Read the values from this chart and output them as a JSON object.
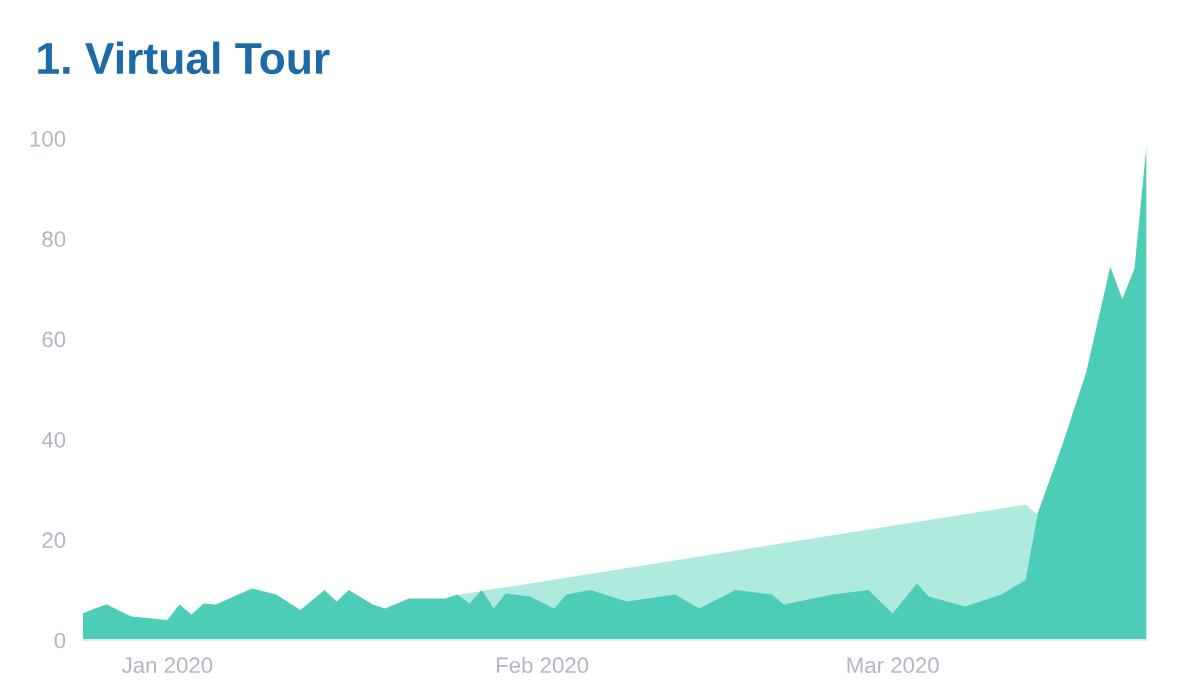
{
  "chart_data": {
    "type": "area",
    "title": "1. Virtual Tour",
    "series": [
      {
        "color": "#aeeade",
        "x": [
          "2020-01-25",
          "2020-03-12",
          "2020-03-13"
        ],
        "values": [
          9,
          27,
          25
        ]
      },
      {
        "color": "#4ecdb6",
        "x": [
          "2019-12-25",
          "2019-12-26",
          "2019-12-27",
          "2019-12-29",
          "2020-01-01",
          "2020-01-02",
          "2020-01-03",
          "2020-01-04",
          "2020-01-05",
          "2020-01-08",
          "2020-01-10",
          "2020-01-12",
          "2020-01-14",
          "2020-01-15",
          "2020-01-16",
          "2020-01-18",
          "2020-01-19",
          "2020-01-21",
          "2020-01-24",
          "2020-01-25",
          "2020-01-26",
          "2020-01-27",
          "2020-01-28",
          "2020-01-29",
          "2020-01-31",
          "2020-02-02",
          "2020-02-03",
          "2020-02-05",
          "2020-02-08",
          "2020-02-12",
          "2020-02-14",
          "2020-02-17",
          "2020-02-20",
          "2020-02-21",
          "2020-02-25",
          "2020-02-28",
          "2020-03-01",
          "2020-03-03",
          "2020-03-04",
          "2020-03-07",
          "2020-03-10",
          "2020-03-12",
          "2020-03-13",
          "2020-03-15",
          "2020-03-17",
          "2020-03-19",
          "2020-03-20",
          "2020-03-21",
          "2020-03-22"
        ],
        "values": [
          5.3,
          6.3,
          7.1,
          4.7,
          4,
          7.1,
          5.1,
          7.3,
          7.1,
          10.3,
          9.1,
          6,
          10,
          7.7,
          10,
          7.1,
          6.3,
          8.3,
          8.3,
          9.1,
          7.3,
          10,
          6.3,
          9.3,
          8.7,
          6.3,
          9.1,
          10,
          7.7,
          9.1,
          6.3,
          10,
          9.1,
          7.1,
          9.1,
          10,
          5.3,
          11.3,
          8.7,
          6.7,
          9.1,
          12,
          25.3,
          38.7,
          53.3,
          74.4,
          68,
          74,
          98.7
        ]
      }
    ],
    "xlim": [
      "2019-12-25",
      "2020-03-22"
    ],
    "xticks": [
      {
        "value": "2020-01-01",
        "label": "Jan 2020"
      },
      {
        "value": "2020-02-01",
        "label": "Feb 2020"
      },
      {
        "value": "2020-03-01",
        "label": "Mar 2020"
      }
    ],
    "ylim": [
      0,
      100
    ],
    "yticks": [
      0,
      20,
      40,
      60,
      80,
      100
    ],
    "grid": false
  }
}
